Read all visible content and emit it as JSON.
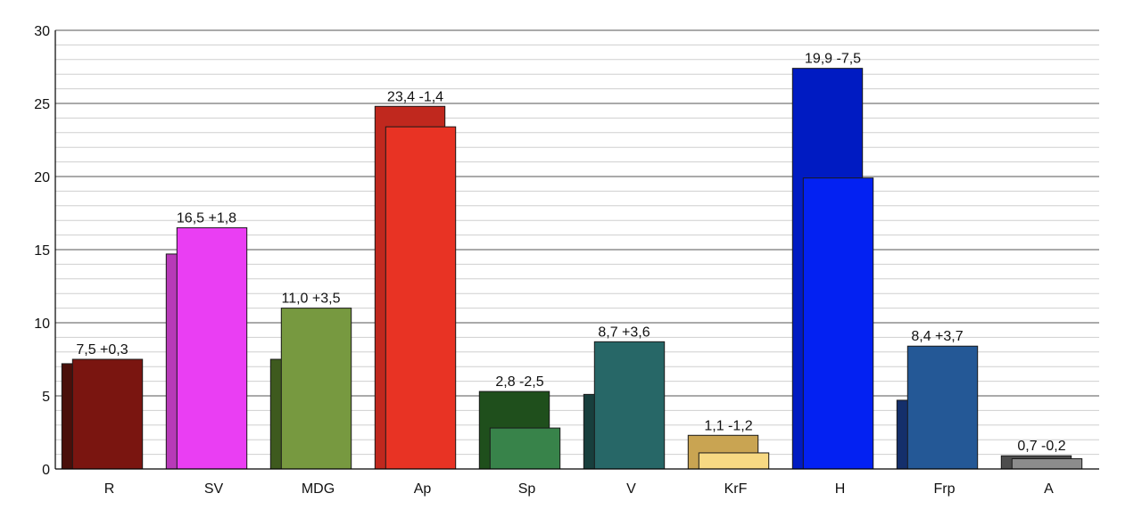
{
  "chart_data": {
    "type": "bar",
    "title": "",
    "xlabel": "",
    "ylabel": "",
    "ylim": [
      0,
      30
    ],
    "yticks": [
      0,
      5,
      10,
      15,
      20,
      25,
      30
    ],
    "grid": true,
    "categories": [
      "R",
      "SV",
      "MDG",
      "Ap",
      "Sp",
      "V",
      "KrF",
      "H",
      "Frp",
      "A"
    ],
    "series": [
      {
        "values": [
          7.2,
          14.7,
          7.5,
          24.8,
          5.3,
          5.1,
          2.3,
          27.4,
          4.7,
          0.9
        ]
      },
      {
        "values": [
          7.5,
          16.5,
          11.0,
          23.4,
          2.8,
          8.7,
          1.1,
          19.9,
          8.4,
          0.7
        ]
      }
    ],
    "data_labels": [
      "7,5 +0,3",
      "16,5 +1,8",
      "11,0 +3,5",
      "23,4 -1,4",
      "2,8 -2,5",
      "8,7 +3,6",
      "1,1 -1,2",
      "19,9 -7,5",
      "8,4 +3,7",
      "0,7 -0,2"
    ],
    "colors": {
      "previous": [
        "#4a0f0a",
        "#b83ab8",
        "#3e5a1e",
        "#c0281e",
        "#1f4f1c",
        "#183f3d",
        "#c9a452",
        "#001bc2",
        "#142f6b",
        "#4d4d4d"
      ],
      "current": [
        "#7a1510",
        "#ea3ef3",
        "#779940",
        "#e83324",
        "#38834a",
        "#276767",
        "#f7d983",
        "#0321f2",
        "#245896",
        "#8c8c8c"
      ]
    }
  }
}
